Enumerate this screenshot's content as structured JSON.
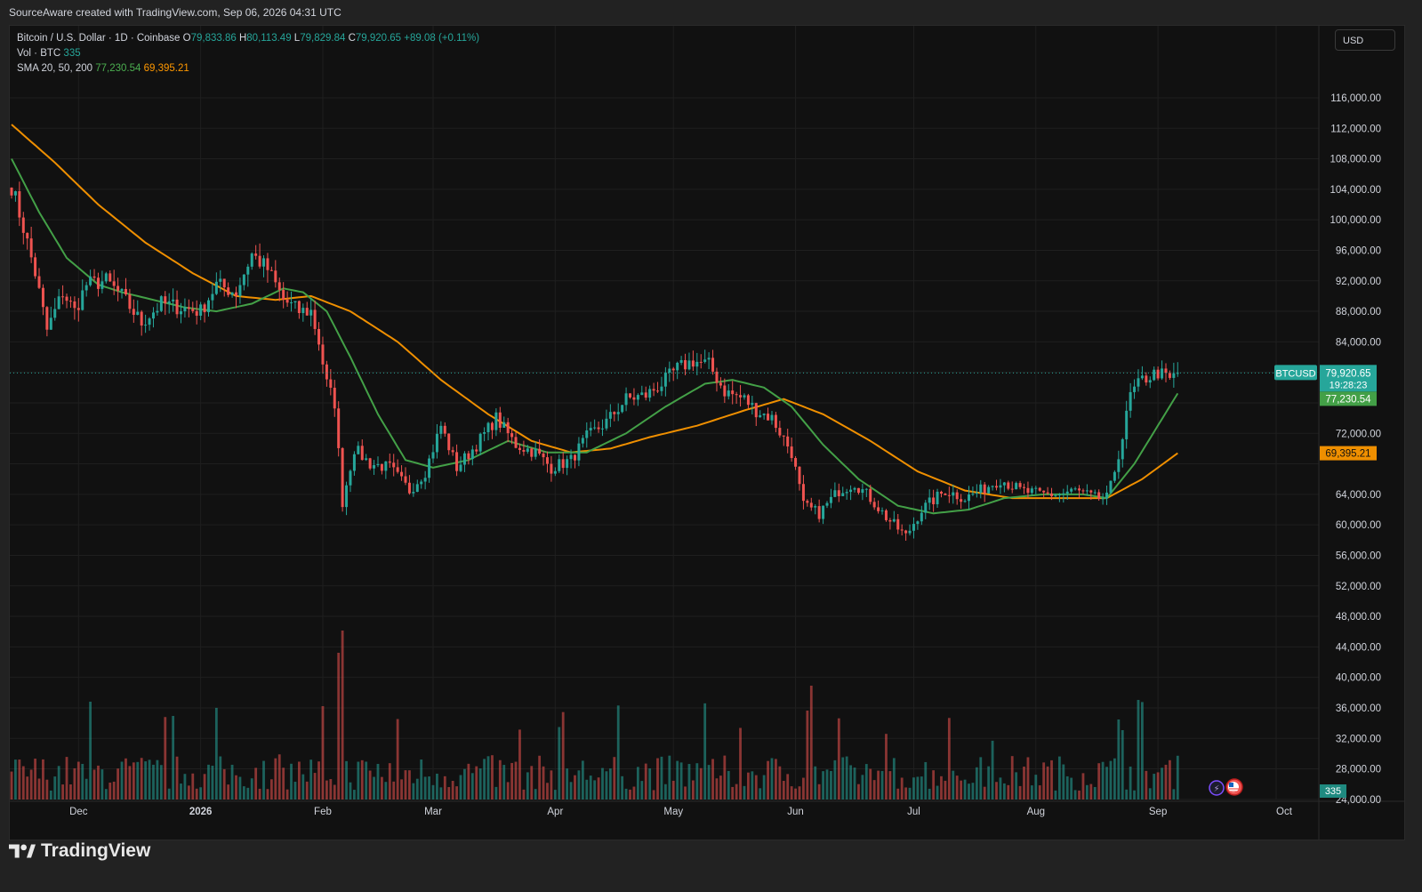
{
  "header": {
    "attribution": "SourceAware created with TradingView.com, Sep 06, 2026 04:31 UTC"
  },
  "legend": {
    "symbol": "Bitcoin / U.S. Dollar · 1D · Coinbase",
    "o_label": "O",
    "o": "79,833.86",
    "h_label": "H",
    "h": "80,113.49",
    "l_label": "L",
    "l": "79,829.84",
    "c_label": "C",
    "c": "79,920.65",
    "change": "+89.08 (+0.11%)",
    "vol_label": "Vol · BTC",
    "vol_value": "335",
    "sma_label": "SMA 20, 50, 200",
    "sma20": "77,230.54",
    "sma50": "69,395.21"
  },
  "currency_button": "USD",
  "footer": {
    "brand": "TradingView"
  },
  "colors": {
    "up": "#26a69a",
    "down": "#ef5350",
    "sma20": "#43a047",
    "sma50": "#ef8f00",
    "bg": "#111111",
    "grid": "#1f1f1f",
    "text": "#d1d4dc"
  },
  "chart_data": {
    "type": "candlestick",
    "ylim": [
      22000,
      120000
    ],
    "y_ticks": [
      "116,000.00",
      "112,000.00",
      "108,000.00",
      "104,000.00",
      "100,000.00",
      "96,000.00",
      "92,000.00",
      "88,000.00",
      "84,000.00",
      "72,000.00",
      "64,000.00",
      "60,000.00",
      "56,000.00",
      "52,000.00",
      "48,000.00",
      "44,000.00",
      "40,000.00",
      "36,000.00",
      "32,000.00",
      "28,000.00",
      "24,000.00"
    ],
    "x_ticks": [
      "Dec",
      "2026",
      "Feb",
      "Mar",
      "Apr",
      "May",
      "Jun",
      "Jul",
      "Aug",
      "Sep",
      "Oct"
    ],
    "price_labels": [
      {
        "name": "BTCUSD",
        "value": "79,920.65",
        "sub": "19:28:23",
        "color": "#26a69a"
      },
      {
        "name": "SMA 20",
        "value": "77,230.54",
        "color": "#43a047"
      },
      {
        "name": "SMA 50",
        "value": "69,395.21",
        "color": "#ef8f00"
      }
    ],
    "volume_label": "335",
    "series_keypoints": {
      "close": [
        [
          "2025-11-14",
          104500
        ],
        [
          "2025-11-17",
          99000
        ],
        [
          "2025-11-20",
          93000
        ],
        [
          "2025-11-23",
          85500
        ],
        [
          "2025-11-27",
          90500
        ],
        [
          "2025-11-30",
          88000
        ],
        [
          "2025-12-03",
          91500
        ],
        [
          "2025-12-08",
          92000
        ],
        [
          "2025-12-12",
          90000
        ],
        [
          "2025-12-17",
          86500
        ],
        [
          "2025-12-22",
          89000
        ],
        [
          "2025-12-27",
          88500
        ],
        [
          "2026-01-01",
          88000
        ],
        [
          "2026-01-05",
          91500
        ],
        [
          "2026-01-10",
          90500
        ],
        [
          "2026-01-14",
          95500
        ],
        [
          "2026-01-18",
          93500
        ],
        [
          "2026-01-22",
          89500
        ],
        [
          "2026-01-26",
          88000
        ],
        [
          "2026-01-29",
          88000
        ],
        [
          "2026-01-31",
          84000
        ],
        [
          "2026-02-02",
          78500
        ],
        [
          "2026-02-04",
          76000
        ],
        [
          "2026-02-06",
          63000
        ],
        [
          "2026-02-09",
          70000
        ],
        [
          "2026-02-13",
          68000
        ],
        [
          "2026-02-18",
          67500
        ],
        [
          "2026-02-23",
          64500
        ],
        [
          "2026-02-27",
          67000
        ],
        [
          "2026-03-03",
          73000
        ],
        [
          "2026-03-07",
          67500
        ],
        [
          "2026-03-12",
          70500
        ],
        [
          "2026-03-17",
          74000
        ],
        [
          "2026-03-22",
          70500
        ],
        [
          "2026-03-27",
          69500
        ],
        [
          "2026-03-31",
          67500
        ],
        [
          "2026-04-05",
          68500
        ],
        [
          "2026-04-09",
          71500
        ],
        [
          "2026-04-14",
          73500
        ],
        [
          "2026-04-19",
          76500
        ],
        [
          "2026-04-24",
          77000
        ],
        [
          "2026-04-28",
          78500
        ],
        [
          "2026-05-02",
          80500
        ],
        [
          "2026-05-06",
          81500
        ],
        [
          "2026-05-10",
          81000
        ],
        [
          "2026-05-14",
          77500
        ],
        [
          "2026-05-19",
          76500
        ],
        [
          "2026-05-22",
          75000
        ],
        [
          "2026-05-26",
          74000
        ],
        [
          "2026-05-31",
          69500
        ],
        [
          "2026-06-03",
          62500
        ],
        [
          "2026-06-07",
          61500
        ],
        [
          "2026-06-12",
          64500
        ],
        [
          "2026-06-16",
          65500
        ],
        [
          "2026-06-20",
          63500
        ],
        [
          "2026-06-24",
          61000
        ],
        [
          "2026-06-29",
          58500
        ],
        [
          "2026-07-03",
          62000
        ],
        [
          "2026-07-09",
          64500
        ],
        [
          "2026-07-14",
          63500
        ],
        [
          "2026-07-18",
          64500
        ],
        [
          "2026-07-23",
          66000
        ],
        [
          "2026-07-28",
          64500
        ],
        [
          "2026-08-02",
          64000
        ],
        [
          "2026-08-07",
          64000
        ],
        [
          "2026-08-11",
          64500
        ],
        [
          "2026-08-16",
          63500
        ],
        [
          "2026-08-19",
          63500
        ],
        [
          "2026-08-20",
          65000
        ],
        [
          "2026-08-23",
          71500
        ],
        [
          "2026-08-25",
          77000
        ],
        [
          "2026-08-28",
          79000
        ],
        [
          "2026-09-01",
          80000
        ],
        [
          "2026-09-04",
          79000
        ],
        [
          "2026-09-06",
          79920.65
        ]
      ],
      "sma20": [
        [
          "2025-11-14",
          108000
        ],
        [
          "2025-11-21",
          101000
        ],
        [
          "2025-11-28",
          95000
        ],
        [
          "2025-12-06",
          91500
        ],
        [
          "2025-12-12",
          90500
        ],
        [
          "2025-12-20",
          89500
        ],
        [
          "2025-12-28",
          88500
        ],
        [
          "2026-01-05",
          88000
        ],
        [
          "2026-01-14",
          89000
        ],
        [
          "2026-01-22",
          91000
        ],
        [
          "2026-01-27",
          90500
        ],
        [
          "2026-02-02",
          88000
        ],
        [
          "2026-02-08",
          82000
        ],
        [
          "2026-02-15",
          74500
        ],
        [
          "2026-02-22",
          68500
        ],
        [
          "2026-03-01",
          67500
        ],
        [
          "2026-03-10",
          68500
        ],
        [
          "2026-03-20",
          71000
        ],
        [
          "2026-03-30",
          69500
        ],
        [
          "2026-04-09",
          69500
        ],
        [
          "2026-04-19",
          72000
        ],
        [
          "2026-04-29",
          75500
        ],
        [
          "2026-05-09",
          78500
        ],
        [
          "2026-05-16",
          79000
        ],
        [
          "2026-05-24",
          78000
        ],
        [
          "2026-05-31",
          75500
        ],
        [
          "2026-06-08",
          70500
        ],
        [
          "2026-06-17",
          66000
        ],
        [
          "2026-06-27",
          62500
        ],
        [
          "2026-07-06",
          61500
        ],
        [
          "2026-07-15",
          62000
        ],
        [
          "2026-07-24",
          63500
        ],
        [
          "2026-08-03",
          64000
        ],
        [
          "2026-08-13",
          64000
        ],
        [
          "2026-08-19",
          63500
        ],
        [
          "2026-08-26",
          68000
        ],
        [
          "2026-09-06",
          77230.54
        ]
      ],
      "sma50": [
        [
          "2025-11-14",
          112500
        ],
        [
          "2025-11-25",
          107500
        ],
        [
          "2025-12-06",
          102000
        ],
        [
          "2025-12-18",
          97000
        ],
        [
          "2025-12-30",
          93000
        ],
        [
          "2026-01-10",
          90000
        ],
        [
          "2026-01-20",
          89500
        ],
        [
          "2026-01-29",
          90000
        ],
        [
          "2026-02-08",
          88000
        ],
        [
          "2026-02-20",
          84000
        ],
        [
          "2026-03-03",
          79000
        ],
        [
          "2026-03-15",
          74500
        ],
        [
          "2026-03-26",
          71000
        ],
        [
          "2026-04-05",
          69500
        ],
        [
          "2026-04-15",
          70000
        ],
        [
          "2026-04-25",
          71500
        ],
        [
          "2026-05-07",
          73000
        ],
        [
          "2026-05-19",
          75000
        ],
        [
          "2026-05-29",
          76500
        ],
        [
          "2026-06-08",
          74500
        ],
        [
          "2026-06-20",
          71000
        ],
        [
          "2026-07-02",
          67000
        ],
        [
          "2026-07-14",
          64500
        ],
        [
          "2026-07-26",
          63500
        ],
        [
          "2026-08-07",
          63500
        ],
        [
          "2026-08-19",
          63500
        ],
        [
          "2026-08-28",
          66000
        ],
        [
          "2026-09-06",
          69395.21
        ]
      ]
    }
  }
}
